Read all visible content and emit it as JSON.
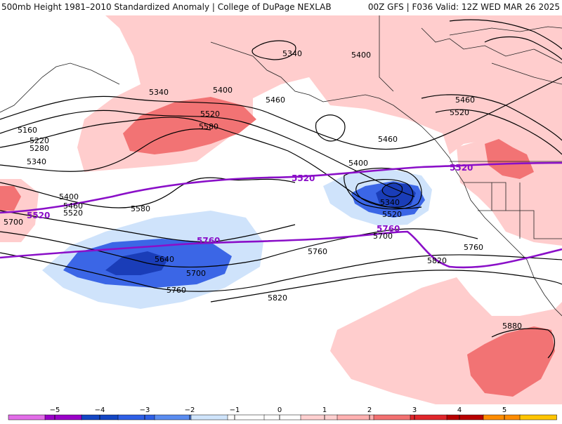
{
  "header": {
    "title": "500mb Height 1981–2010 Standardized Anomaly | College of DuPage NEXLAB",
    "run_info": "00Z GFS | F036 Valid: 12Z WED MAR 26 2025"
  },
  "contours": {
    "black_labels": [
      "5340",
      "5400",
      "5340",
      "5400",
      "5460",
      "5520",
      "5580",
      "5160",
      "5220",
      "5280",
      "5340",
      "5400",
      "5460",
      "5520",
      "5580",
      "5700",
      "5640",
      "5700",
      "5760",
      "5460",
      "5400",
      "5340",
      "5520",
      "5760",
      "5820",
      "5880",
      "5700",
      "5460",
      "5520",
      "5760",
      "5820"
    ],
    "purple_labels": [
      "5520",
      "5520",
      "5520",
      "5760",
      "5760"
    ]
  },
  "colorbar": {
    "tick_labels": [
      "−5",
      "−4",
      "−3",
      "−2",
      "−1",
      "0",
      "1",
      "2",
      "3",
      "4",
      "5"
    ],
    "colors": [
      "#e26de8",
      "#9a00c8",
      "#1346c4",
      "#2e5fe6",
      "#5a8cf0",
      "#cfe4fb",
      "#ffffff",
      "#ffffff",
      "#ffd0d0",
      "#ffb1b1",
      "#f27070",
      "#e0262b",
      "#b80000",
      "#ff8c00",
      "#ffc500"
    ]
  },
  "colors": {
    "land_outline": "#222222",
    "height_contour": "#000000",
    "highlight_contour": "#8a0fc8"
  }
}
